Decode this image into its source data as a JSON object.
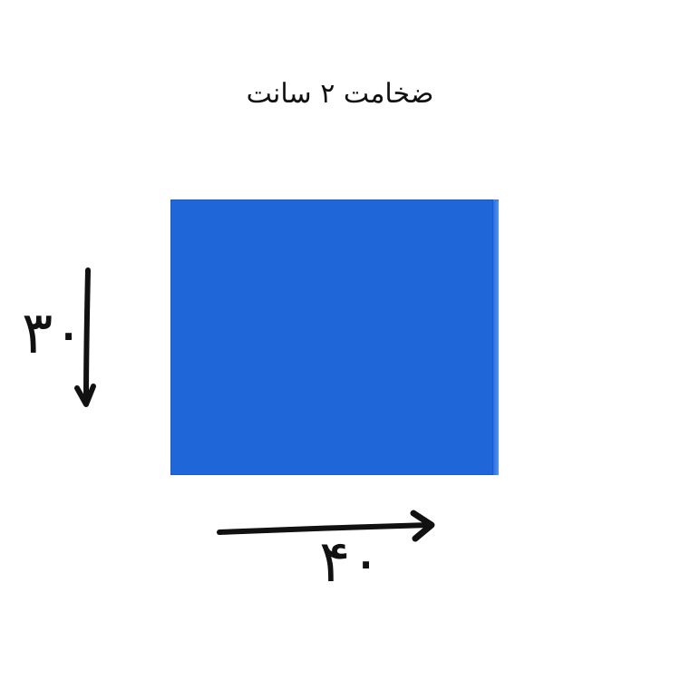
{
  "title": "ضخامت ۲ سانت",
  "panel": {
    "color": "#1f66d9"
  },
  "dimensions": {
    "height_label": "۳۰",
    "width_label": "۴۰"
  },
  "icons": {
    "height_arrow": "arrow-down-icon",
    "width_arrow": "arrow-right-icon"
  }
}
